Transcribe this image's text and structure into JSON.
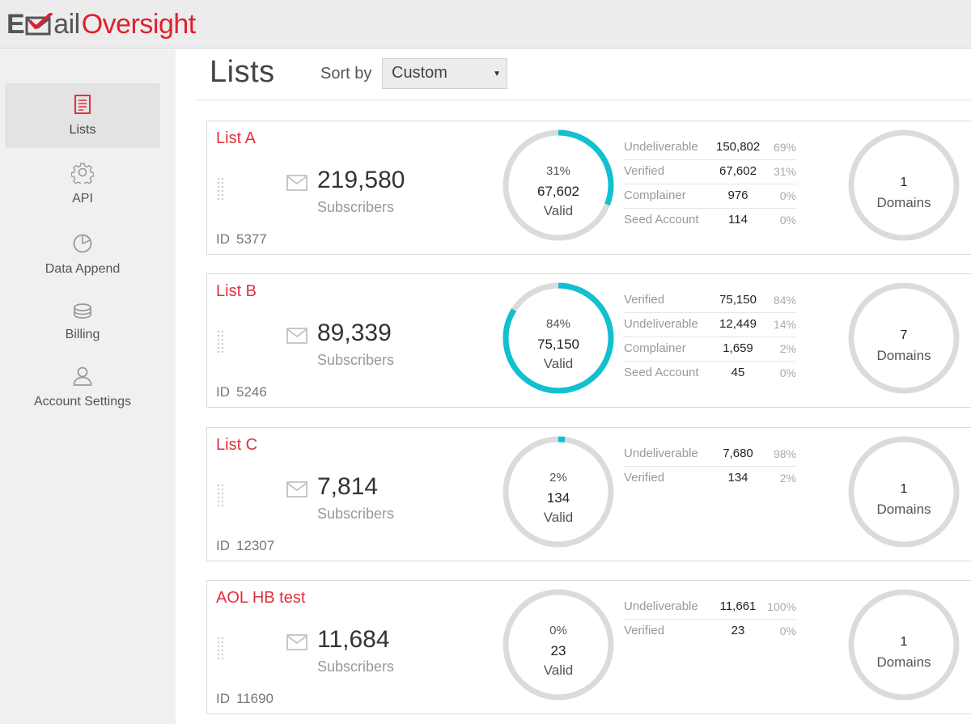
{
  "colors": {
    "accent": "#e0303d",
    "ring_fill": "#12c0cf",
    "ring_track": "#dadcdc"
  },
  "header": {
    "logo": {
      "part1": "E",
      "part2": "ail",
      "part3": "Oversight"
    }
  },
  "sidebar": {
    "items": [
      {
        "label": "Lists",
        "icon": "document-icon",
        "active": true
      },
      {
        "label": "API",
        "icon": "gear-icon",
        "active": false
      },
      {
        "label": "Data Append",
        "icon": "pie-chart-icon",
        "active": false
      },
      {
        "label": "Billing",
        "icon": "coins-icon",
        "active": false
      },
      {
        "label": "Account Settings",
        "icon": "user-icon",
        "active": false
      }
    ]
  },
  "main": {
    "title": "Lists",
    "sort_label": "Sort by",
    "sort_value": "Custom",
    "sort_arrow": "▼"
  },
  "lists": [
    {
      "name": "List A",
      "subscribers": "219,580",
      "subscribers_label": "Subscribers",
      "id_label": "ID",
      "id": "5377",
      "valid_pct": "31%",
      "valid_count": "67,602",
      "valid_label": "Valid",
      "valid_fraction": 0.31,
      "stats": [
        {
          "name": "Undeliverable",
          "value": "150,802",
          "pct": "69%"
        },
        {
          "name": "Verified",
          "value": "67,602",
          "pct": "31%"
        },
        {
          "name": "Complainer",
          "value": "976",
          "pct": "0%"
        },
        {
          "name": "Seed Account",
          "value": "114",
          "pct": "0%"
        }
      ],
      "domains_count": "1",
      "domains_label": "Domains"
    },
    {
      "name": "List B",
      "subscribers": "89,339",
      "subscribers_label": "Subscribers",
      "id_label": "ID",
      "id": "5246",
      "valid_pct": "84%",
      "valid_count": "75,150",
      "valid_label": "Valid",
      "valid_fraction": 0.84,
      "stats": [
        {
          "name": "Verified",
          "value": "75,150",
          "pct": "84%"
        },
        {
          "name": "Undeliverable",
          "value": "12,449",
          "pct": "14%"
        },
        {
          "name": "Complainer",
          "value": "1,659",
          "pct": "2%"
        },
        {
          "name": "Seed Account",
          "value": "45",
          "pct": "0%"
        }
      ],
      "domains_count": "7",
      "domains_label": "Domains"
    },
    {
      "name": "List C",
      "subscribers": "7,814",
      "subscribers_label": "Subscribers",
      "id_label": "ID",
      "id": "12307",
      "valid_pct": "2%",
      "valid_count": "134",
      "valid_label": "Valid",
      "valid_fraction": 0.02,
      "stats": [
        {
          "name": "Undeliverable",
          "value": "7,680",
          "pct": "98%"
        },
        {
          "name": "Verified",
          "value": "134",
          "pct": "2%"
        }
      ],
      "domains_count": "1",
      "domains_label": "Domains"
    },
    {
      "name": "AOL HB test",
      "subscribers": "11,684",
      "subscribers_label": "Subscribers",
      "id_label": "ID",
      "id": "11690",
      "valid_pct": "0%",
      "valid_count": "23",
      "valid_label": "Valid",
      "valid_fraction": 0.0,
      "stats": [
        {
          "name": "Undeliverable",
          "value": "11,661",
          "pct": "100%"
        },
        {
          "name": "Verified",
          "value": "23",
          "pct": "0%"
        }
      ],
      "domains_count": "1",
      "domains_label": "Domains"
    }
  ]
}
